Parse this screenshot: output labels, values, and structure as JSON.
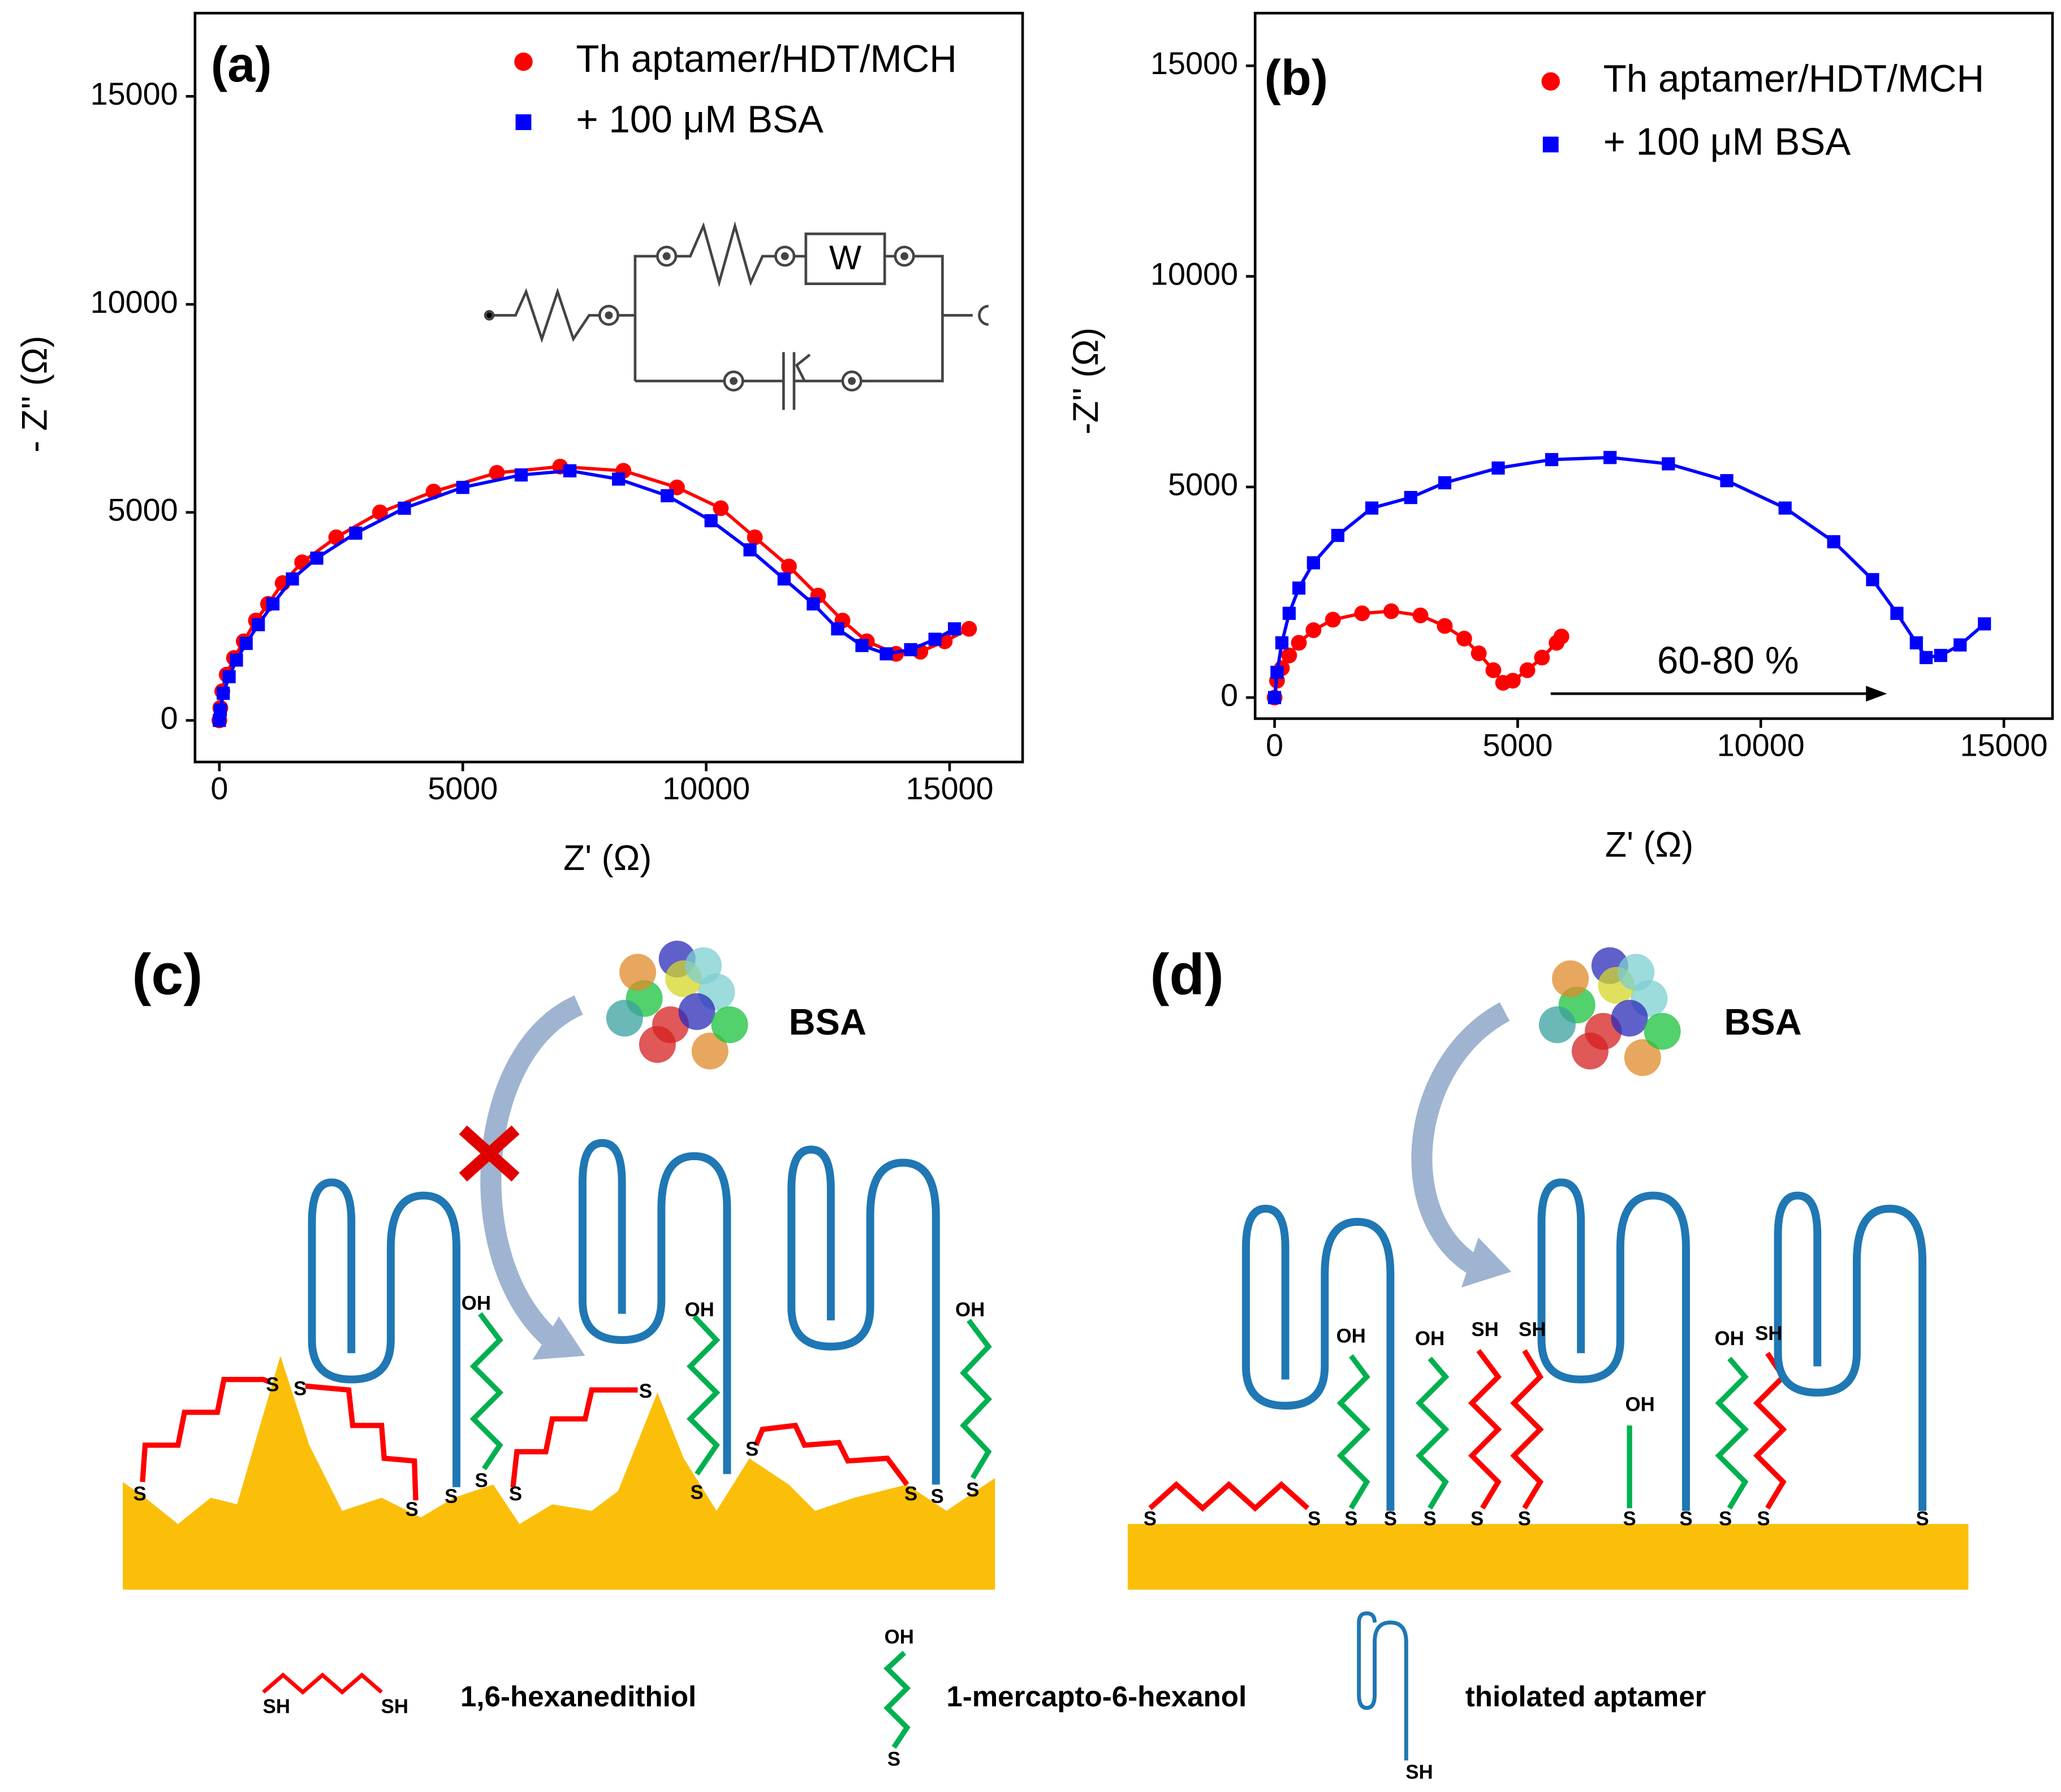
{
  "chart_data": [
    {
      "type": "scatter",
      "panel_label": "(a)",
      "xlabel": "Z' (Ω)",
      "ylabel": "- Z'' (Ω)",
      "xlim": [
        -500,
        16500
      ],
      "ylim": [
        -1000,
        17000
      ],
      "xticks": [
        0,
        5000,
        10000,
        15000
      ],
      "yticks": [
        0,
        5000,
        10000,
        15000
      ],
      "legend_position": "upper right",
      "inset_label": "W",
      "series": [
        {
          "name": "Th aptamer/HDT/MCH",
          "color": "#ff0000",
          "marker": "circle",
          "x": [
            0,
            20,
            60,
            150,
            300,
            500,
            750,
            1000,
            1300,
            1700,
            2400,
            3300,
            4400,
            5700,
            7000,
            8300,
            9400,
            10300,
            11000,
            11700,
            12300,
            12800,
            13300,
            13900,
            14400,
            14900,
            15400
          ],
          "values": [
            0,
            300,
            700,
            1100,
            1500,
            1900,
            2400,
            2800,
            3300,
            3800,
            4400,
            5000,
            5500,
            5950,
            6100,
            6000,
            5600,
            5100,
            4400,
            3700,
            3000,
            2400,
            1900,
            1600,
            1650,
            1900,
            2200
          ]
        },
        {
          "name": "+ 100 μM BSA",
          "color": "#0000ff",
          "marker": "square",
          "x": [
            0,
            20,
            80,
            200,
            350,
            550,
            800,
            1100,
            1500,
            2000,
            2800,
            3800,
            5000,
            6200,
            7200,
            8200,
            9200,
            10100,
            10900,
            11600,
            12200,
            12700,
            13200,
            13700,
            14200,
            14700,
            15100
          ],
          "values": [
            0,
            250,
            650,
            1050,
            1450,
            1850,
            2300,
            2800,
            3400,
            3900,
            4500,
            5100,
            5600,
            5900,
            6000,
            5800,
            5400,
            4800,
            4100,
            3400,
            2800,
            2200,
            1800,
            1600,
            1700,
            1950,
            2200
          ]
        }
      ]
    },
    {
      "type": "scatter",
      "panel_label": "(b)",
      "xlabel": "Z' (Ω)",
      "ylabel": "-Z'' (Ω)",
      "xlim": [
        -400,
        16000
      ],
      "ylim": [
        -500,
        16250
      ],
      "xticks": [
        0,
        5000,
        10000,
        15000
      ],
      "yticks": [
        0,
        5000,
        10000,
        15000
      ],
      "legend_position": "upper right",
      "annotation": "60-80 %",
      "series": [
        {
          "name": "Th aptamer/HDT/MCH",
          "color": "#ff0000",
          "marker": "circle",
          "x": [
            0,
            50,
            150,
            300,
            500,
            800,
            1200,
            1800,
            2400,
            3000,
            3500,
            3900,
            4200,
            4500,
            4700,
            4900,
            5200,
            5500,
            5800,
            5900
          ],
          "values": [
            0,
            400,
            700,
            1000,
            1300,
            1600,
            1850,
            2000,
            2050,
            1950,
            1700,
            1400,
            1050,
            650,
            350,
            400,
            650,
            950,
            1300,
            1450
          ]
        },
        {
          "name": "+ 100 μM BSA",
          "color": "#0000ff",
          "marker": "square",
          "x": [
            0,
            50,
            150,
            300,
            500,
            800,
            1300,
            2000,
            2800,
            3500,
            4600,
            5700,
            6900,
            8100,
            9300,
            10500,
            11500,
            12300,
            12800,
            13200,
            13400,
            13700,
            14100,
            14600
          ],
          "values": [
            0,
            600,
            1300,
            2000,
            2600,
            3200,
            3850,
            4500,
            4750,
            5100,
            5450,
            5650,
            5700,
            5550,
            5150,
            4500,
            3700,
            2800,
            2000,
            1300,
            950,
            1000,
            1250,
            1750
          ]
        }
      ]
    }
  ],
  "diagrams": [
    {
      "label": "(c)",
      "protein": "BSA",
      "surface_labels": [
        "S",
        "S",
        "S",
        "S",
        "S",
        "S",
        "OH",
        "S",
        "S",
        "S",
        "OH",
        "S",
        "S",
        "S",
        "S",
        "OH"
      ]
    },
    {
      "label": "(d)",
      "protein": "BSA",
      "surface_labels": [
        "S",
        "S",
        "OH",
        "S",
        "S",
        "OH",
        "S",
        "SH",
        "S",
        "SH",
        "S",
        "OH",
        "S",
        "S",
        "OH",
        "S",
        "SH",
        "S",
        "S"
      ]
    }
  ],
  "legend": {
    "items": [
      {
        "label": "1,6-hexanedithiol",
        "ends": [
          "SH",
          "SH"
        ]
      },
      {
        "label": "1-mercapto-6-hexanol",
        "ends": [
          "OH",
          "S"
        ]
      },
      {
        "label": "thiolated aptamer",
        "ends": [
          "SH"
        ]
      }
    ]
  }
}
